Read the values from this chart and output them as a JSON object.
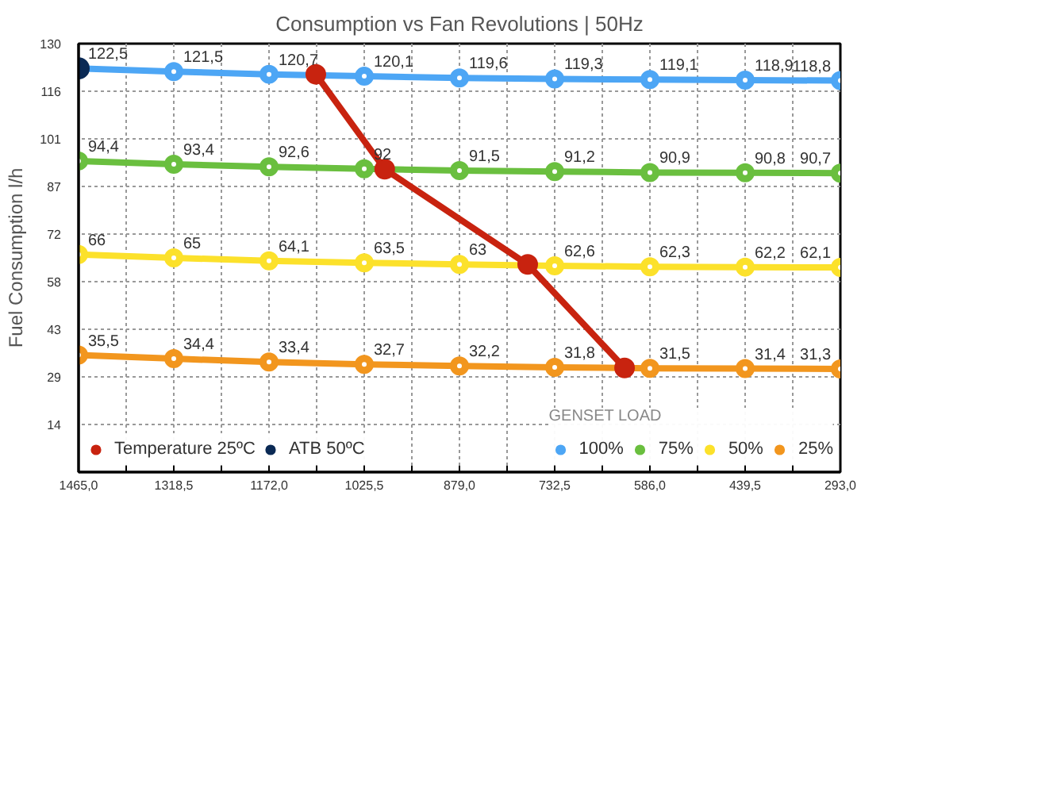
{
  "chart_data": {
    "type": "line",
    "title": "Consumption vs Fan Revolutions | 50Hz",
    "ylabel": "Fuel Consumption l/h",
    "legend_title": "GENSET LOAD",
    "x": [
      1465.0,
      1318.5,
      1172.0,
      1025.5,
      879.0,
      732.5,
      586.0,
      439.5,
      293.0
    ],
    "xlim": [
      1465.0,
      293.0
    ],
    "xticks": [
      {
        "value": 1465.0,
        "label": "1465,0"
      },
      {
        "value": 1391.75,
        "label": null
      },
      {
        "value": 1318.5,
        "label": "1318,5"
      },
      {
        "value": 1245.25,
        "label": null
      },
      {
        "value": 1172.0,
        "label": "1172,0"
      },
      {
        "value": 1098.75,
        "label": null
      },
      {
        "value": 1025.5,
        "label": "1025,5"
      },
      {
        "value": 952.25,
        "label": null
      },
      {
        "value": 879.0,
        "label": "879,0"
      },
      {
        "value": 805.75,
        "label": null
      },
      {
        "value": 732.5,
        "label": "732,5"
      },
      {
        "value": 659.25,
        "label": null
      },
      {
        "value": 586.0,
        "label": "586,0"
      },
      {
        "value": 512.75,
        "label": null
      },
      {
        "value": 439.5,
        "label": "439,5"
      },
      {
        "value": 366.25,
        "label": null
      },
      {
        "value": 293.0,
        "label": "293,0"
      }
    ],
    "ylim": [
      0,
      130
    ],
    "yticks": [
      {
        "value": 14.44,
        "label": "14"
      },
      {
        "value": 28.89,
        "label": "29"
      },
      {
        "value": 43.33,
        "label": "43"
      },
      {
        "value": 57.78,
        "label": "58"
      },
      {
        "value": 72.22,
        "label": "72"
      },
      {
        "value": 86.67,
        "label": "87"
      },
      {
        "value": 101.11,
        "label": "101"
      },
      {
        "value": 115.56,
        "label": "116"
      },
      {
        "value": 130,
        "label": "130"
      }
    ],
    "grid": true,
    "legend": "bottom",
    "marker": "circle",
    "line_style": "solid",
    "series": [
      {
        "name": "100%",
        "color": "#4da6f5",
        "values": [
          122.5,
          121.5,
          120.7,
          120.1,
          119.6,
          119.3,
          119.1,
          118.9,
          118.8
        ],
        "value_labels": [
          "122,5",
          "121,5",
          "120,7",
          "120,1",
          "119,6",
          "119,3",
          "119,1",
          "118,9",
          "118,8"
        ]
      },
      {
        "name": "75%",
        "color": "#6abf3f",
        "values": [
          94.4,
          93.4,
          92.6,
          92,
          91.5,
          91.2,
          90.9,
          90.8,
          90.7
        ],
        "value_labels": [
          "94,4",
          "93,4",
          "92,6",
          "92",
          "91,5",
          "91,2",
          "90,9",
          "90,8",
          "90,7"
        ]
      },
      {
        "name": "50%",
        "color": "#fce12b",
        "values": [
          66,
          65,
          64.1,
          63.5,
          63,
          62.6,
          62.3,
          62.2,
          62.1
        ],
        "value_labels": [
          "66",
          "65",
          "64,1",
          "63,5",
          "63",
          "62,6",
          "62,3",
          "62,2",
          "62,1"
        ]
      },
      {
        "name": "25%",
        "color": "#f2961e",
        "values": [
          35.5,
          34.4,
          33.4,
          32.7,
          32.2,
          31.8,
          31.5,
          31.4,
          31.3
        ],
        "value_labels": [
          "35,5",
          "34,4",
          "33,4",
          "32,7",
          "32,2",
          "31,8",
          "31,5",
          "31,4",
          "31,3"
        ]
      },
      {
        "name": "Temperature 25ºC",
        "color": "#c8230f",
        "x": [
          1100,
          994,
          774,
          625
        ],
        "values": [
          120.7,
          91.9,
          63,
          31.6
        ]
      },
      {
        "name": "ATB 50ºC",
        "color": "#0b2a55",
        "type": "scatter",
        "x": [
          1465.0
        ],
        "values": [
          122.5
        ]
      }
    ]
  }
}
